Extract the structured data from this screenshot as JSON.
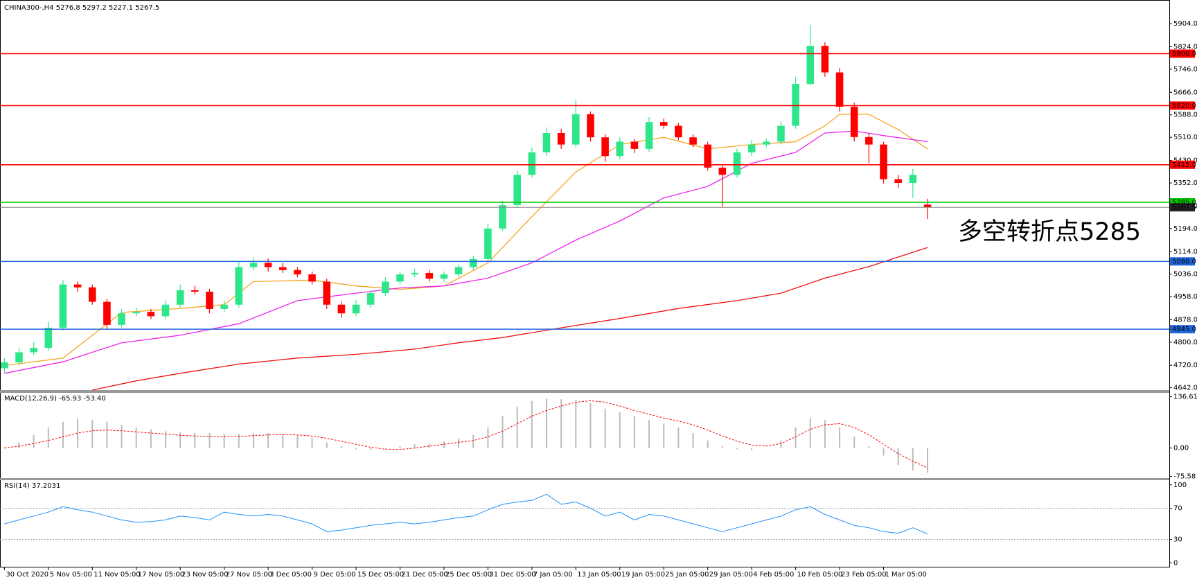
{
  "chart_data": [
    {
      "type": "candlestick",
      "title": "CHINA300-,H4  5276.8 5297.2 5227.1 5267.5",
      "annotation": "多空转折点5285",
      "annotation_color": "#ff0000",
      "x": [
        0,
        1,
        2,
        3,
        4,
        5,
        6,
        7,
        8,
        9,
        10,
        11,
        12,
        13,
        14,
        15,
        16,
        17,
        18,
        19,
        20,
        21,
        22,
        23,
        24,
        25,
        26,
        27,
        28,
        29,
        30,
        31,
        32,
        33,
        34,
        35,
        36,
        37,
        38,
        39,
        40,
        41,
        42,
        43,
        44,
        45,
        46,
        47,
        48,
        49,
        50,
        51,
        52,
        53,
        54,
        55,
        56,
        57,
        58,
        59,
        60,
        61,
        62,
        63
      ],
      "open": [
        4710,
        4730,
        4765,
        4780,
        4850,
        5000,
        4990,
        4940,
        4860,
        4900,
        4905,
        4890,
        4930,
        4980,
        4975,
        4915,
        4930,
        5060,
        5075,
        5060,
        5050,
        5035,
        5010,
        4930,
        4900,
        4930,
        4970,
        5010,
        5035,
        5040,
        5020,
        5035,
        5060,
        5088,
        5194,
        5275,
        5380,
        5458,
        5525,
        5485,
        5590,
        5510,
        5445,
        5495,
        5470,
        5563,
        5550,
        5510,
        5485,
        5405,
        5380,
        5458,
        5485,
        5495,
        5550,
        5695,
        5827,
        5735,
        5616,
        5511,
        5485,
        5365,
        5352,
        5276.8
      ],
      "high": [
        4745,
        4780,
        4800,
        4870,
        5015,
        5010,
        5000,
        4950,
        4915,
        4920,
        4915,
        4945,
        5000,
        4995,
        4985,
        4945,
        5080,
        5095,
        5090,
        5075,
        5060,
        5045,
        5020,
        4940,
        4945,
        4980,
        5025,
        5045,
        5055,
        5050,
        5045,
        5070,
        5100,
        5210,
        5290,
        5395,
        5475,
        5545,
        5540,
        5640,
        5600,
        5520,
        5510,
        5505,
        5580,
        5575,
        5560,
        5520,
        5495,
        5415,
        5470,
        5500,
        5505,
        5565,
        5720,
        5900,
        5840,
        5750,
        5630,
        5525,
        5495,
        5380,
        5400,
        5297.2
      ],
      "low": [
        4695,
        4720,
        4755,
        4770,
        4840,
        4975,
        4930,
        4845,
        4850,
        4890,
        4880,
        4880,
        4920,
        4965,
        4900,
        4905,
        4920,
        5050,
        5045,
        5040,
        5025,
        5000,
        4915,
        4885,
        4890,
        4920,
        4960,
        5000,
        5025,
        5010,
        5010,
        5025,
        5050,
        5080,
        5185,
        5265,
        5370,
        5445,
        5470,
        5475,
        5495,
        5425,
        5435,
        5455,
        5460,
        5540,
        5500,
        5475,
        5395,
        5270,
        5370,
        5445,
        5475,
        5485,
        5540,
        5690,
        5720,
        5600,
        5495,
        5420,
        5350,
        5335,
        5300,
        5227.1
      ],
      "close": [
        4730,
        4765,
        4780,
        4850,
        5000,
        4990,
        4940,
        4860,
        4900,
        4905,
        4890,
        4930,
        4980,
        4975,
        4915,
        4930,
        5060,
        5075,
        5060,
        5050,
        5035,
        5010,
        4930,
        4900,
        4930,
        4970,
        5010,
        5035,
        5040,
        5020,
        5035,
        5060,
        5088,
        5194,
        5275,
        5380,
        5458,
        5525,
        5485,
        5590,
        5510,
        5445,
        5495,
        5470,
        5563,
        5550,
        5510,
        5485,
        5405,
        5380,
        5458,
        5485,
        5495,
        5550,
        5695,
        5827,
        5735,
        5616,
        5511,
        5485,
        5365,
        5352,
        5380,
        5267.5
      ],
      "up_color": "#2ee68a",
      "down_color": "#ff0000",
      "xlim": [
        -0.3,
        79.5
      ],
      "ylim": [
        4634,
        5986
      ],
      "xticks": [
        {
          "value": 0,
          "label": "30 Oct 2020"
        },
        {
          "value": 3,
          "label": "5 Nov 05:00"
        },
        {
          "value": 6,
          "label": "11 Nov 05:00"
        },
        {
          "value": 9,
          "label": "17 Nov 05:00"
        },
        {
          "value": 12,
          "label": "23 Nov 05:00"
        },
        {
          "value": 15,
          "label": "27 Nov 05:00"
        },
        {
          "value": 18,
          "label": "3 Dec 05:00"
        },
        {
          "value": 21,
          "label": "9 Dec 05:00"
        },
        {
          "value": 24,
          "label": "15 Dec 05:00"
        },
        {
          "value": 27,
          "label": "21 Dec 05:00"
        },
        {
          "value": 30,
          "label": "25 Dec 05:00"
        },
        {
          "value": 33,
          "label": "31 Dec 05:00"
        },
        {
          "value": 36,
          "label": "7 Jan 05:00"
        },
        {
          "value": 39,
          "label": "13 Jan 05:00"
        },
        {
          "value": 42,
          "label": "19 Jan 05:00"
        },
        {
          "value": 45,
          "label": "25 Jan 05:00"
        },
        {
          "value": 48,
          "label": "29 Jan 05:00"
        },
        {
          "value": 51,
          "label": "4 Feb 05:00"
        },
        {
          "value": 54,
          "label": "10 Feb 05:00"
        },
        {
          "value": 57,
          "label": "23 Feb 05:00"
        },
        {
          "value": 60,
          "label": "1 Mar 05:00"
        }
      ],
      "yticks": [
        {
          "value": 5904,
          "label": "5904.0"
        },
        {
          "value": 5824,
          "label": "5824.0"
        },
        {
          "value": 5746,
          "label": "5746.0"
        },
        {
          "value": 5666,
          "label": "5666.0"
        },
        {
          "value": 5588,
          "label": "5588.0"
        },
        {
          "value": 5510,
          "label": "5510.0"
        },
        {
          "value": 5430,
          "label": "5430.0"
        },
        {
          "value": 5352,
          "label": "5352.0"
        },
        {
          "value": 5272,
          "label": "5272.0"
        },
        {
          "value": 5194,
          "label": "5194.0"
        },
        {
          "value": 5114,
          "label": "5114.0"
        },
        {
          "value": 5036,
          "label": "5036.0"
        },
        {
          "value": 4958,
          "label": "4958.0"
        },
        {
          "value": 4878,
          "label": "4878.0"
        },
        {
          "value": 4800,
          "label": "4800.0"
        },
        {
          "value": 4720,
          "label": "4720.0"
        },
        {
          "value": 4642,
          "label": "4642.0"
        }
      ],
      "lines": [
        {
          "color": "#f5a623",
          "x": [
            0,
            4,
            6,
            8,
            12,
            15,
            17,
            21,
            24,
            27,
            30,
            33,
            36,
            39,
            42,
            45,
            48,
            51,
            54,
            56,
            57,
            59,
            61,
            63
          ],
          "values": [
            4719,
            4745,
            4824,
            4903,
            4917,
            4930,
            5010,
            5015,
            4995,
            4983,
            4995,
            5075,
            5235,
            5390,
            5485,
            5510,
            5470,
            5485,
            5495,
            5550,
            5590,
            5590,
            5537,
            5470
          ]
        },
        {
          "color": "#ee22ee",
          "x": [
            0,
            4,
            8,
            12,
            16,
            20,
            24,
            27,
            30,
            33,
            36,
            39,
            42,
            45,
            48,
            51,
            54,
            56,
            58,
            60,
            63
          ],
          "values": [
            4692,
            4732,
            4798,
            4824,
            4864,
            4944,
            4970,
            4988,
            4995,
            5022,
            5075,
            5154,
            5220,
            5300,
            5340,
            5420,
            5458,
            5525,
            5532,
            5516,
            5495
          ]
        },
        {
          "color": "#ee1111",
          "x": [
            6,
            9,
            12,
            16,
            20,
            24,
            28,
            31,
            34,
            38,
            42,
            46,
            50,
            53,
            56,
            59,
            63
          ],
          "values": [
            4634,
            4666,
            4692,
            4724,
            4745,
            4758,
            4776,
            4798,
            4816,
            4850,
            4882,
            4917,
            4944,
            4970,
            5022,
            5062,
            5128
          ]
        }
      ],
      "levels": [
        {
          "value": 5800,
          "label": "5800.0",
          "color": "#ff0000"
        },
        {
          "value": 5620,
          "label": "5620.0",
          "color": "#ff0000"
        },
        {
          "value": 5415,
          "label": "5415.0",
          "color": "#ff0000"
        },
        {
          "value": 5285,
          "label": "5285.0",
          "color": "#00cc00"
        },
        {
          "value": 5080,
          "label": "5080.0",
          "color": "#2266dd"
        },
        {
          "value": 4845,
          "label": "4845.0",
          "color": "#2266dd"
        }
      ],
      "current_price": 5267.5
    },
    {
      "type": "macd",
      "title": "MACD(12,26,9) -65.93 -53.40",
      "histogram": [
        2,
        15,
        35,
        55,
        70,
        78,
        75,
        70,
        62,
        55,
        50,
        45,
        42,
        40,
        40,
        38,
        38,
        40,
        40,
        38,
        35,
        28,
        15,
        5,
        -3,
        -5,
        -2,
        5,
        10,
        12,
        18,
        25,
        35,
        55,
        85,
        110,
        125,
        132,
        130,
        128,
        120,
        105,
        95,
        85,
        75,
        65,
        55,
        40,
        20,
        5,
        -3,
        -5,
        0,
        20,
        55,
        80,
        75,
        55,
        30,
        5,
        -20,
        -45,
        -60,
        -65.93
      ],
      "signal": [
        0,
        5,
        12,
        20,
        30,
        40,
        46,
        48,
        46,
        43,
        40,
        37,
        34,
        32,
        30,
        30,
        31,
        33,
        35,
        36,
        35,
        32,
        26,
        18,
        10,
        2,
        -3,
        -4,
        0,
        5,
        10,
        15,
        20,
        30,
        45,
        65,
        85,
        100,
        112,
        122,
        126,
        122,
        112,
        100,
        90,
        80,
        72,
        62,
        48,
        32,
        18,
        8,
        5,
        12,
        30,
        50,
        62,
        65,
        55,
        35,
        10,
        -15,
        -35,
        -53.4
      ],
      "hist_color": "#bbbbbb",
      "signal_color": "#ff0000",
      "ylim": [
        -80,
        147
      ],
      "yticks": [
        136.61,
        {
          "value": 0,
          "label": "0.00"
        },
        -75.58
      ]
    },
    {
      "type": "line",
      "title": "RSI(14) 37.2031",
      "values": [
        50,
        55,
        60,
        65,
        72,
        68,
        65,
        60,
        55,
        52,
        53,
        55,
        60,
        58,
        55,
        65,
        62,
        60,
        62,
        60,
        55,
        50,
        40,
        42,
        45,
        48,
        50,
        52,
        50,
        52,
        55,
        58,
        60,
        68,
        75,
        78,
        80,
        88,
        75,
        78,
        70,
        60,
        65,
        55,
        62,
        60,
        55,
        50,
        45,
        40,
        45,
        50,
        55,
        60,
        68,
        72,
        62,
        55,
        48,
        45,
        40,
        38,
        45,
        37.2031
      ],
      "color": "#1e90ff",
      "ylim": [
        -5,
        106
      ],
      "yticks": [
        100,
        70,
        30,
        0
      ],
      "levels": [
        70,
        30
      ]
    }
  ]
}
